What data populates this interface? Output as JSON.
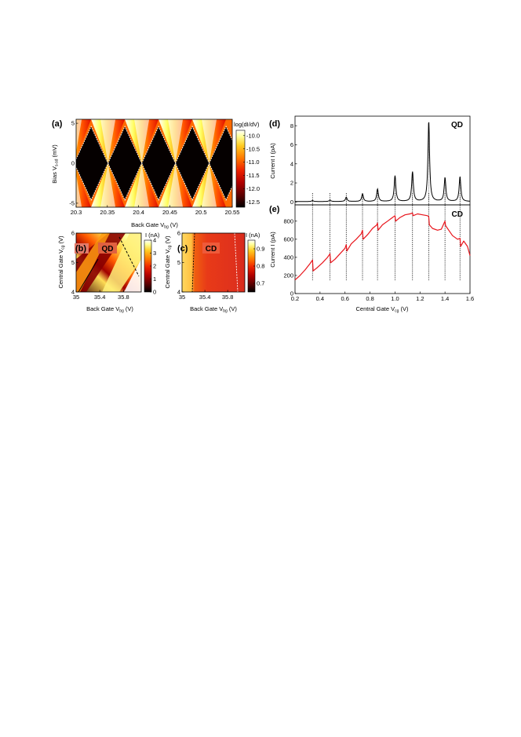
{
  "colors": {
    "hot": [
      "#000000",
      "#5a0000",
      "#b00000",
      "#ee2200",
      "#ff7a00",
      "#ffcc22",
      "#ffff99",
      "#ffffff"
    ],
    "qd_trace": "#000000",
    "cd_trace": "#e8141b",
    "diamond_edges": "#ffffff",
    "boundary_solid": "#000000"
  },
  "chart_data": [
    {
      "panel": "(a)",
      "type": "heatmap",
      "xlabel": "Back Gate V",
      "xlabel_sub": "bg",
      "xlabel_unit": "(V)",
      "ylabel": "Bias V",
      "ylabel_sub": "s-sd",
      "ylabel_unit": "(mV)",
      "xlim": [
        20.3,
        20.55
      ],
      "ylim": [
        -5.5,
        5.5
      ],
      "x_ticks": [
        "20.3",
        "20.35",
        "20.4",
        "20.45",
        "20.5",
        "20.55"
      ],
      "x_tick_values": [
        20.3,
        20.35,
        20.4,
        20.45,
        20.5,
        20.55
      ],
      "y_ticks": [
        "5",
        "0",
        "-5"
      ],
      "y_tick_values": [
        5,
        0,
        -5
      ],
      "colorbar_label": "log(dI/dV)",
      "colorbar_ticks": [
        "-10.0",
        "-10.5",
        "-11.0",
        "-11.5",
        "-12.0",
        "-12.5"
      ],
      "colorbar_range": [
        -12.7,
        -9.8
      ],
      "diamond_centers_x": [
        20.27,
        20.324,
        20.378,
        20.432,
        20.486,
        20.54
      ],
      "diamond_half_height": 4.6
    },
    {
      "panel": "(b)",
      "type": "heatmap",
      "tag": "QD",
      "xlabel": "Back Gate V",
      "xlabel_sub": "bg",
      "xlabel_unit": "(V)",
      "ylabel": "Central Gate V",
      "ylabel_sub": "cg",
      "ylabel_unit": "(V)",
      "xlim": [
        35.0,
        36.1
      ],
      "ylim": [
        4,
        6
      ],
      "x_ticks": [
        "35",
        "35.4",
        "35.8"
      ],
      "x_tick_values": [
        35.0,
        35.4,
        35.8
      ],
      "y_ticks": [
        "6",
        "5",
        "4"
      ],
      "y_tick_values": [
        6,
        5,
        4
      ],
      "colorbar_label": "I (nA)",
      "colorbar_ticks": [
        "4",
        "3",
        "2",
        "1",
        "0"
      ],
      "colorbar_range": [
        0,
        4
      ]
    },
    {
      "panel": "(c)",
      "type": "heatmap",
      "tag": "CD",
      "xlabel": "Back Gate V",
      "xlabel_sub": "bg",
      "xlabel_unit": "(V)",
      "ylabel": "Central Gate V",
      "ylabel_sub": "cg",
      "ylabel_unit": "(V)",
      "xlim": [
        35.0,
        36.1
      ],
      "ylim": [
        4,
        6
      ],
      "x_ticks": [
        "35",
        "35.4",
        "35.8"
      ],
      "x_tick_values": [
        35.0,
        35.4,
        35.8
      ],
      "y_ticks": [
        "6",
        "5",
        "4"
      ],
      "y_tick_values": [
        6,
        5,
        4
      ],
      "colorbar_label": "I (nA)",
      "colorbar_ticks": [
        "0.9",
        "0.8",
        "0.7"
      ],
      "colorbar_range": [
        0.65,
        0.95
      ]
    },
    {
      "panel": "(d)",
      "type": "line",
      "tag": "QD",
      "ylabel": "Current  I (pA)",
      "xlim": [
        0.2,
        1.6
      ],
      "ylim": [
        -0.3,
        9
      ],
      "y_ticks": [
        "8",
        "6",
        "4",
        "2",
        "0"
      ],
      "y_tick_values": [
        8,
        6,
        4,
        2,
        0
      ],
      "peak_x": [
        0.34,
        0.48,
        0.61,
        0.74,
        0.86,
        1.0,
        1.14,
        1.27,
        1.4,
        1.52
      ],
      "peak_y": [
        0.1,
        0.15,
        0.45,
        0.8,
        1.3,
        2.7,
        3.1,
        8.4,
        2.5,
        2.6
      ]
    },
    {
      "panel": "(e)",
      "type": "line",
      "tag": "CD",
      "xlabel": "Central Gate V",
      "xlabel_sub": "cg",
      "xlabel_unit": "(V)",
      "ylabel": "Current  I (pA)",
      "xlim": [
        0.2,
        1.6
      ],
      "ylim": [
        0,
        980
      ],
      "x_ticks": [
        "0.2",
        "0.4",
        "0.6",
        "0.8",
        "1.0",
        "1.2",
        "1.4",
        "1.6"
      ],
      "x_tick_values": [
        0.2,
        0.4,
        0.6,
        0.8,
        1.0,
        1.2,
        1.4,
        1.6
      ],
      "y_ticks": [
        "800",
        "600",
        "400",
        "200",
        "0"
      ],
      "y_tick_values": [
        800,
        600,
        400,
        200,
        0
      ],
      "x": [
        0.2,
        0.24,
        0.28,
        0.32,
        0.34,
        0.345,
        0.38,
        0.42,
        0.46,
        0.48,
        0.485,
        0.52,
        0.56,
        0.6,
        0.61,
        0.615,
        0.65,
        0.69,
        0.73,
        0.74,
        0.745,
        0.78,
        0.82,
        0.855,
        0.86,
        0.865,
        0.9,
        0.94,
        0.98,
        1.0,
        1.005,
        1.04,
        1.08,
        1.12,
        1.14,
        1.145,
        1.18,
        1.22,
        1.26,
        1.27,
        1.275,
        1.3,
        1.34,
        1.37,
        1.4,
        1.405,
        1.43,
        1.46,
        1.5,
        1.52,
        1.525,
        1.55,
        1.58,
        1.6
      ],
      "y": [
        150,
        200,
        260,
        330,
        370,
        250,
        290,
        340,
        400,
        440,
        340,
        380,
        440,
        500,
        540,
        470,
        550,
        600,
        660,
        700,
        600,
        650,
        720,
        760,
        780,
        700,
        760,
        800,
        840,
        860,
        800,
        840,
        870,
        880,
        890,
        860,
        880,
        870,
        860,
        850,
        760,
        720,
        700,
        710,
        800,
        750,
        700,
        640,
        600,
        610,
        520,
        580,
        520,
        420
      ],
      "dotted_x": [
        0.34,
        0.48,
        0.61,
        0.74,
        0.86,
        1.0,
        1.14,
        1.27,
        1.4,
        1.52
      ]
    }
  ]
}
